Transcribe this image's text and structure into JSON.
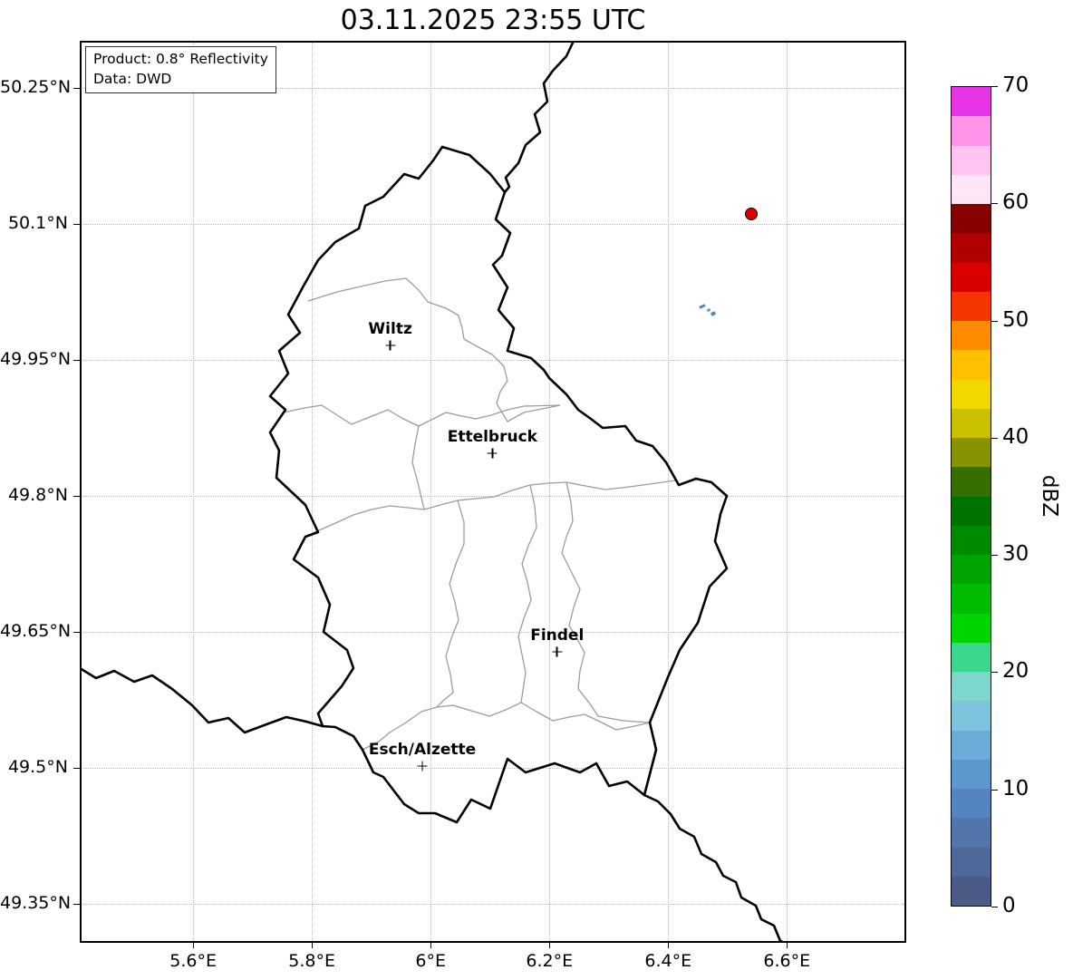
{
  "title": "03.11.2025 23:55 UTC",
  "info_box": {
    "product": "Product: 0.8° Reflectivity",
    "data_source": "Data: DWD"
  },
  "chart_data": {
    "type": "map-heatmap",
    "region": "Luxembourg radar composite",
    "title": "03.11.2025 23:55 UTC",
    "grid_style": "dotted",
    "lon_range": [
      5.409,
      6.801
    ],
    "lat_range": [
      49.307,
      50.302
    ],
    "x_ticks": [
      {
        "label": "5.6°E",
        "value": 5.6
      },
      {
        "label": "5.8°E",
        "value": 5.8
      },
      {
        "label": "6°E",
        "value": 6.0
      },
      {
        "label": "6.2°E",
        "value": 6.2
      },
      {
        "label": "6.4°E",
        "value": 6.4
      },
      {
        "label": "6.6°E",
        "value": 6.6
      }
    ],
    "y_ticks": [
      {
        "label": "50.25°N",
        "value": 50.25
      },
      {
        "label": "50.1°N",
        "value": 50.1
      },
      {
        "label": "49.95°N",
        "value": 49.95
      },
      {
        "label": "49.8°N",
        "value": 49.8
      },
      {
        "label": "49.65°N",
        "value": 49.65
      },
      {
        "label": "49.5°N",
        "value": 49.5
      },
      {
        "label": "49.35°N",
        "value": 49.35
      }
    ],
    "colorbar": {
      "label": "dBZ",
      "min": 0,
      "max": 70,
      "tick_values": [
        0,
        10,
        20,
        30,
        40,
        50,
        60,
        70
      ],
      "segment_colors_bottom_to_top": [
        "#4c5a86",
        "#4f6899",
        "#5276ac",
        "#5585c0",
        "#5c97cd",
        "#69add8",
        "#7cc5dd",
        "#7ed7cf",
        "#3bd78f",
        "#00d500",
        "#00bc00",
        "#00a300",
        "#008a00",
        "#007200",
        "#366e00",
        "#879400",
        "#c8c000",
        "#f0d800",
        "#ffc000",
        "#ff8c00",
        "#f43500",
        "#d90000",
        "#b00000",
        "#860000",
        "#ffe6f7",
        "#ffc4ef",
        "#ff94e8",
        "#e835e8"
      ]
    },
    "cities": [
      {
        "name": "Wiltz",
        "lon": 5.932,
        "lat": 49.966
      },
      {
        "name": "Ettelbruck",
        "lon": 6.104,
        "lat": 49.847
      },
      {
        "name": "Findel",
        "lon": 6.213,
        "lat": 49.628
      },
      {
        "name": "Esch/Alzette",
        "lon": 5.986,
        "lat": 49.502
      }
    ],
    "radar_site": {
      "lon": 6.54,
      "lat": 50.111,
      "marker": "circle",
      "color": "#dd0000"
    },
    "echoes": [
      {
        "lon": 6.458,
        "lat": 50.009,
        "color": "#5585c0",
        "w": 7,
        "h": 3,
        "rot": -25
      },
      {
        "lon": 6.468,
        "lat": 50.005,
        "color": "#6a9cc8",
        "w": 4,
        "h": 3,
        "rot": -20
      },
      {
        "lon": 6.476,
        "lat": 50.001,
        "color": "#5585c0",
        "w": 5,
        "h": 4,
        "rot": -30
      }
    ]
  }
}
